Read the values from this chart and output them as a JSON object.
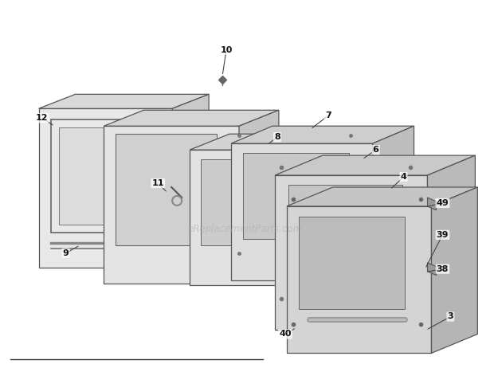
{
  "title": "",
  "bg_color": "#ffffff",
  "line_color": "#555555",
  "label_color": "#111111",
  "watermark": "eReplacementParts.com",
  "watermark_color": "#aaaaaa",
  "watermark_alpha": 0.5,
  "figsize": [
    6.2,
    4.62
  ],
  "dpi": 100
}
